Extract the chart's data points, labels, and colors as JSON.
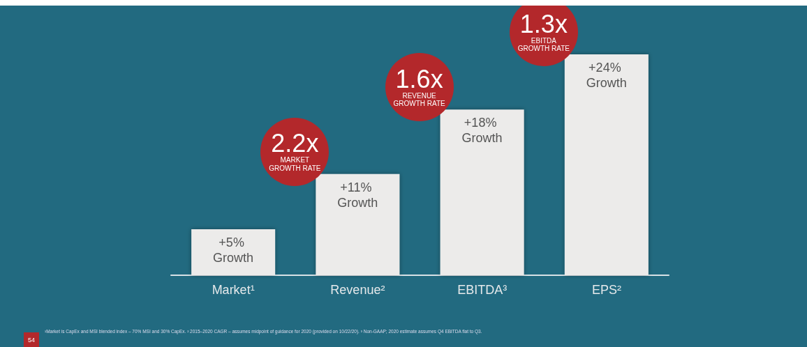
{
  "chart_data": {
    "type": "bar",
    "categories": [
      "Market¹",
      "Revenue²",
      "EBITDA³",
      "EPS²"
    ],
    "values": [
      5,
      11,
      18,
      24
    ],
    "color": "#ecebea",
    "value_labels": [
      "+5% Growth",
      "+11% Growth",
      "+18% Growth",
      "+24% Growth"
    ],
    "annotations": [
      "2.2x\nMARKET\nGROWTH RATE",
      "1.6x\nREVENUE\nGROWTH RATE",
      "1.3x\nEBITDA\nGROWTH RATE",
      "¹Market is CapEx and MSI blended index – 70% MSI and 30% CapEx. ² 2015–2020 CAGR – assumes midpoint of guidance for 2020 (provided on 10/22/20). ³ Non-GAAP; 2020 estimate assumes Q4 EBITDA flat to Q3.",
      "54"
    ],
    "grid": false
  }
}
